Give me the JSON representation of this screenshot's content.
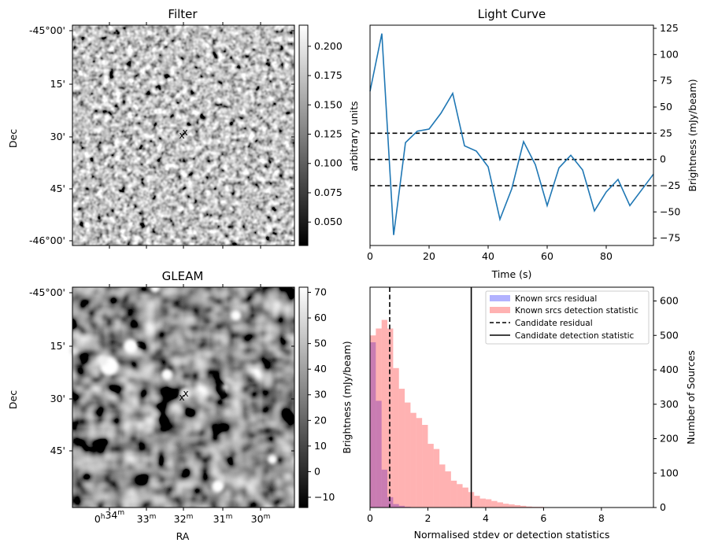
{
  "chart_data": [
    {
      "panel": "filter",
      "type": "heatmap",
      "title": "Filter",
      "ylabel": "Dec",
      "ytick_labels": [
        "-45°00'",
        "15'",
        "30'",
        "45'",
        "-46°00'"
      ],
      "colorbar": {
        "label": "arbitrary units",
        "ticks": [
          0.05,
          0.075,
          0.1,
          0.125,
          0.15,
          0.175,
          0.2
        ],
        "tick_labels": [
          "0.050",
          "0.075",
          "0.100",
          "0.125",
          "0.150",
          "0.175",
          "0.200"
        ],
        "range": [
          0.03,
          0.218
        ],
        "colormap": "gray"
      },
      "markers": [
        {
          "label": "x",
          "color": "#0000ff"
        },
        {
          "label": "x",
          "color": "#ff0000"
        }
      ]
    },
    {
      "panel": "gleam",
      "type": "heatmap",
      "title": "GLEAM",
      "xlabel": "RA",
      "ylabel": "Dec",
      "ytick_labels": [
        "-45°00'",
        "15'",
        "30'",
        "45'"
      ],
      "xtick_labels": [
        "0h34m",
        "33m",
        "32m",
        "31m",
        "30m"
      ],
      "colorbar": {
        "label": "Brightness (mJy/beam)",
        "ticks": [
          -10,
          0,
          10,
          20,
          30,
          40,
          50,
          60,
          70
        ],
        "tick_labels": [
          "−10",
          "0",
          "10",
          "20",
          "30",
          "40",
          "50",
          "60",
          "70"
        ],
        "range": [
          -14,
          72
        ],
        "colormap": "gray"
      },
      "markers": [
        {
          "label": "x",
          "color": "#0000ff"
        },
        {
          "label": "x",
          "color": "#ff0000"
        }
      ]
    },
    {
      "panel": "lightcurve",
      "type": "line",
      "title": "Light Curve",
      "xlabel": "Time (s)",
      "ylabel": "Brightness (mJy/beam)",
      "xlim": [
        0,
        96
      ],
      "ylim": [
        -82,
        128
      ],
      "x_ticks": [
        0,
        20,
        40,
        60,
        80
      ],
      "y_ticks": [
        -75,
        -50,
        -25,
        0,
        25,
        50,
        75,
        100,
        125
      ],
      "y_tick_labels": [
        "−75",
        "−50",
        "−25",
        "0",
        "25",
        "50",
        "75",
        "100",
        "125"
      ],
      "series": [
        {
          "color": "#1f77b4",
          "x": [
            0,
            4,
            8,
            12,
            16,
            20,
            24,
            28,
            32,
            36,
            40,
            44,
            48,
            52,
            56,
            60,
            64,
            68,
            72,
            76,
            80,
            84,
            88,
            92,
            96
          ],
          "y": [
            65,
            120,
            -72,
            16,
            27,
            29,
            44,
            63,
            13,
            8,
            -7,
            -57,
            -28,
            17,
            -5,
            -44,
            -8,
            4,
            -10,
            -49,
            -31,
            -19,
            -44,
            -29,
            -14
          ]
        }
      ],
      "hlines": [
        {
          "y": 25,
          "style": "dashed",
          "color": "#000000"
        },
        {
          "y": 0,
          "style": "dashed",
          "color": "#000000"
        },
        {
          "y": -25,
          "style": "dashed",
          "color": "#000000"
        }
      ]
    },
    {
      "panel": "histogram",
      "type": "bar",
      "xlabel": "Normalised stdev or detection statistics",
      "ylabel": "Number of Sources",
      "left_ylabel": "Brightness (mJy/beam)",
      "xlim": [
        0,
        9.8
      ],
      "ylim": [
        0,
        640
      ],
      "x_ticks": [
        0,
        2,
        4,
        6,
        8
      ],
      "y_ticks": [
        0,
        100,
        200,
        300,
        400,
        500,
        600
      ],
      "bin_width": 0.2,
      "series": [
        {
          "name": "Known srcs residual",
          "color": "#0000ff",
          "alpha": 0.3,
          "bin_start": 0,
          "values": [
            480,
            310,
            110,
            30,
            10,
            5,
            2,
            1,
            1,
            0,
            0,
            0,
            0,
            0,
            0,
            0,
            0,
            0,
            0,
            0,
            0,
            0,
            0,
            0,
            0,
            0,
            0,
            0,
            0,
            0,
            0,
            0,
            0,
            0,
            0,
            0,
            0,
            0,
            0,
            0,
            0,
            0,
            0,
            0,
            0,
            0,
            0,
            0,
            0
          ]
        },
        {
          "name": "Known srcs detection statistic",
          "color": "#ff0000",
          "alpha": 0.3,
          "bin_start": 0,
          "values": [
            500,
            520,
            545,
            520,
            405,
            345,
            305,
            275,
            260,
            240,
            185,
            170,
            125,
            105,
            78,
            68,
            58,
            45,
            34,
            26,
            24,
            19,
            15,
            11,
            9,
            7,
            5,
            3,
            2,
            2,
            1,
            1,
            1,
            0,
            0,
            1,
            0,
            0,
            0,
            0,
            0,
            0,
            0,
            0,
            0,
            0,
            1,
            0,
            0
          ]
        }
      ],
      "vlines": [
        {
          "name": "Candidate residual",
          "x": 0.68,
          "style": "dashed",
          "color": "#000000"
        },
        {
          "name": "Candidate detection statistic",
          "x": 3.5,
          "style": "solid",
          "color": "#000000"
        }
      ],
      "legend": "top-right"
    }
  ]
}
